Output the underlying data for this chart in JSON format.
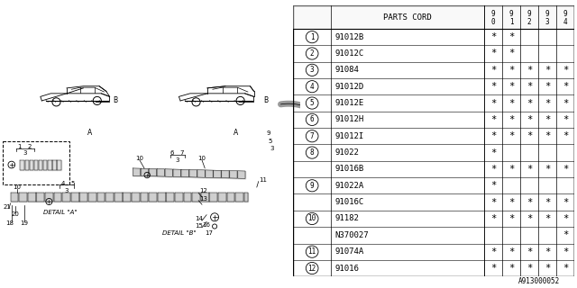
{
  "bg_color": "#ffffff",
  "col_header": "PARTS CORD",
  "year_cols": [
    "9\n0",
    "9\n1",
    "9\n2",
    "9\n3",
    "9\n4"
  ],
  "rows": [
    {
      "ref": "1",
      "part": "91012B",
      "marks": [
        1,
        1,
        0,
        0,
        0
      ],
      "span_start": true
    },
    {
      "ref": "2",
      "part": "91012C",
      "marks": [
        1,
        1,
        0,
        0,
        0
      ],
      "span_start": true
    },
    {
      "ref": "3",
      "part": "91084",
      "marks": [
        1,
        1,
        1,
        1,
        1
      ],
      "span_start": true
    },
    {
      "ref": "4",
      "part": "91012D",
      "marks": [
        1,
        1,
        1,
        1,
        1
      ],
      "span_start": true
    },
    {
      "ref": "5",
      "part": "91012E",
      "marks": [
        1,
        1,
        1,
        1,
        1
      ],
      "span_start": true
    },
    {
      "ref": "6",
      "part": "91012H",
      "marks": [
        1,
        1,
        1,
        1,
        1
      ],
      "span_start": true
    },
    {
      "ref": "7",
      "part": "91012I",
      "marks": [
        1,
        1,
        1,
        1,
        1
      ],
      "span_start": true
    },
    {
      "ref": "8",
      "part": "91022",
      "marks": [
        1,
        0,
        0,
        0,
        0
      ],
      "span_start": true
    },
    {
      "ref": "",
      "part": "91016B",
      "marks": [
        1,
        1,
        1,
        1,
        1
      ],
      "span_start": false
    },
    {
      "ref": "9",
      "part": "91022A",
      "marks": [
        1,
        0,
        0,
        0,
        0
      ],
      "span_start": true
    },
    {
      "ref": "",
      "part": "91016C",
      "marks": [
        1,
        1,
        1,
        1,
        1
      ],
      "span_start": false
    },
    {
      "ref": "10",
      "part": "91182",
      "marks": [
        1,
        1,
        1,
        1,
        1
      ],
      "span_start": true
    },
    {
      "ref": "",
      "part": "N370027",
      "marks": [
        0,
        0,
        0,
        0,
        1
      ],
      "span_start": false
    },
    {
      "ref": "11",
      "part": "91074A",
      "marks": [
        1,
        1,
        1,
        1,
        1
      ],
      "span_start": true
    },
    {
      "ref": "12",
      "part": "91016",
      "marks": [
        1,
        1,
        1,
        1,
        1
      ],
      "span_start": true
    }
  ],
  "footer": "A913000052",
  "lc": "#000000",
  "font_size": 6.5
}
